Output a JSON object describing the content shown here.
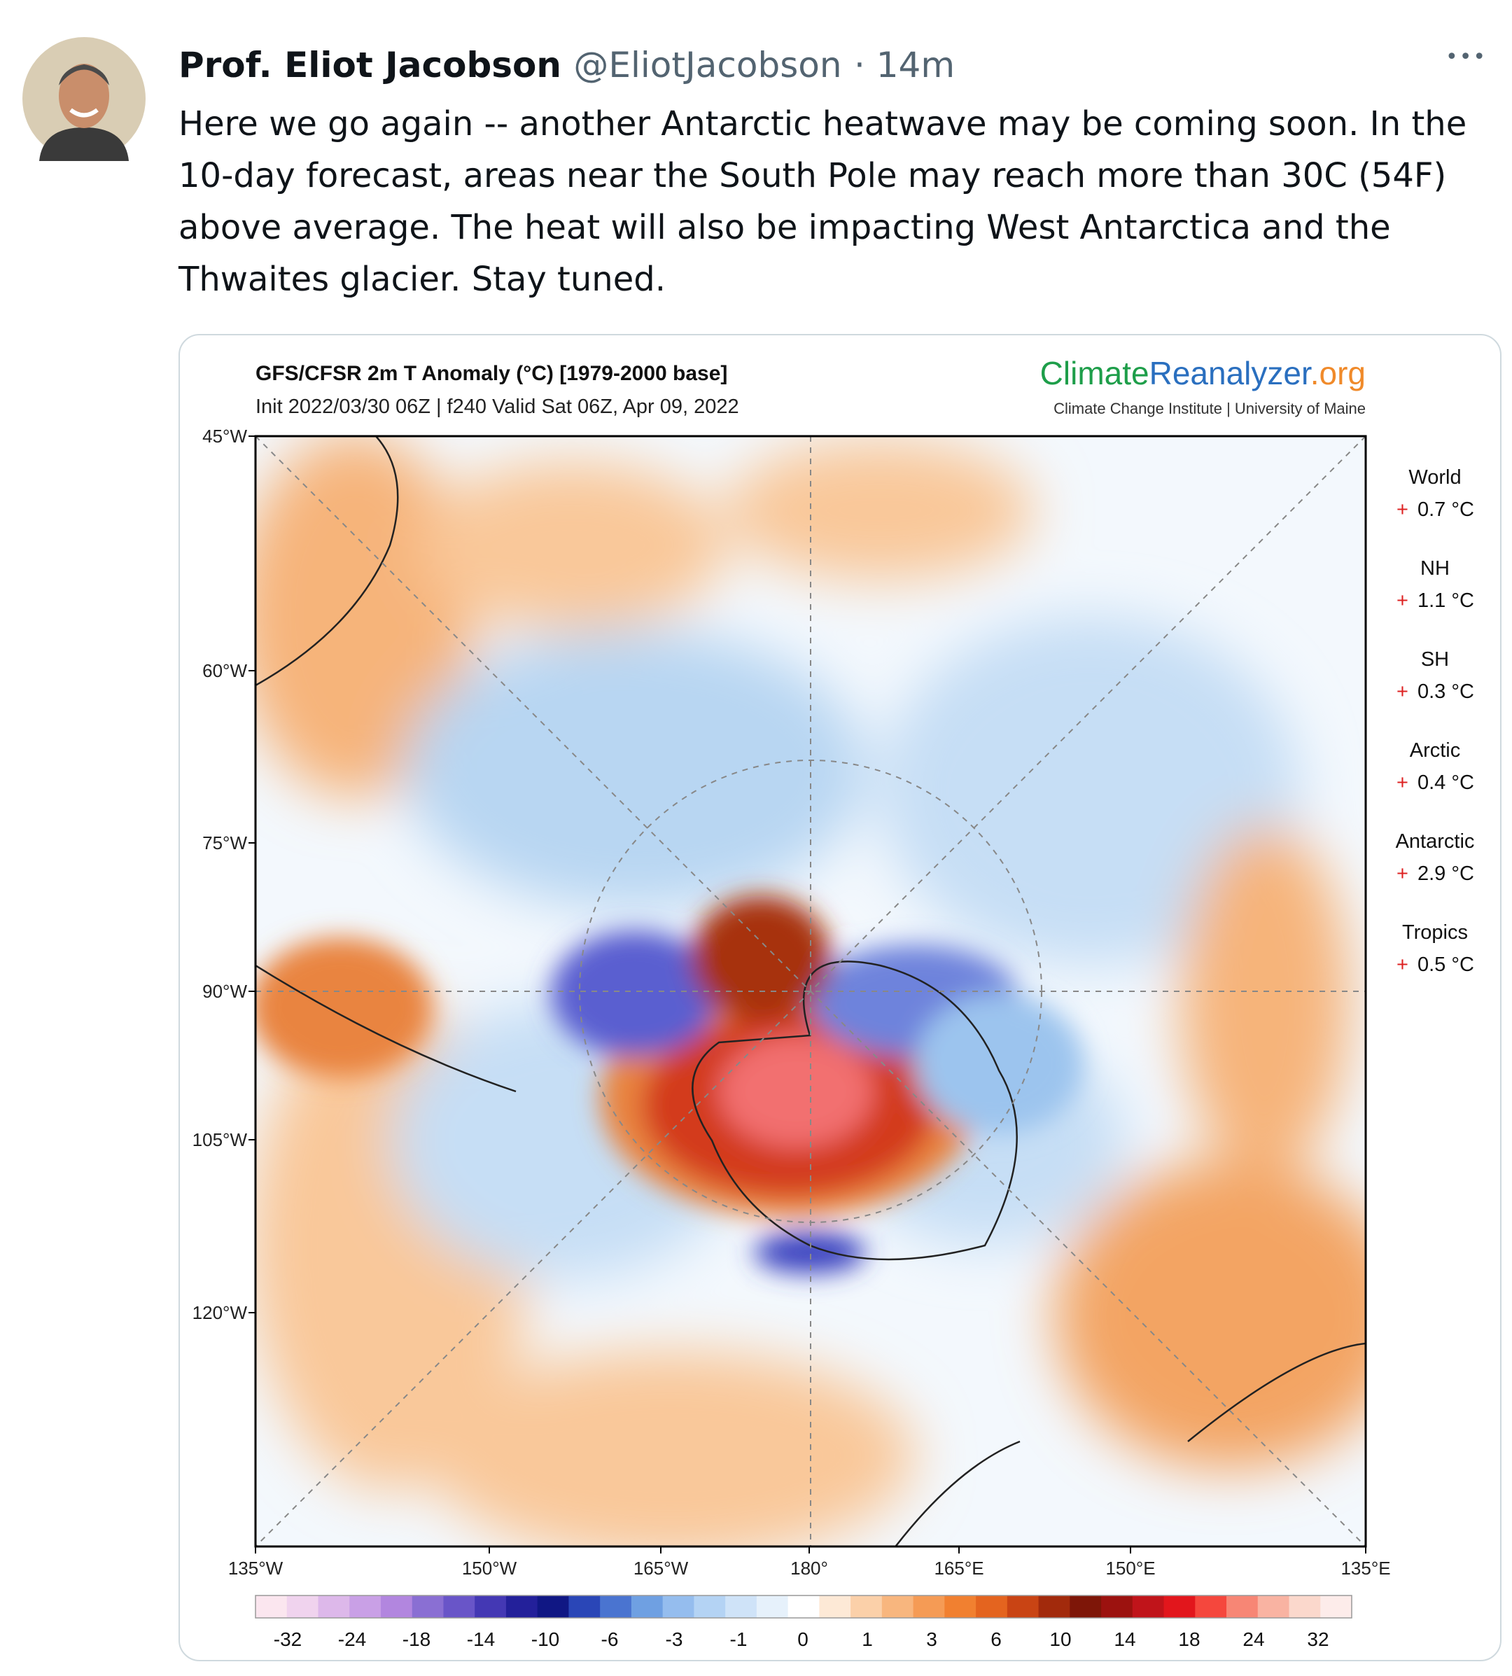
{
  "tweet": {
    "author": "Prof. Eliot Jacobson",
    "handle": "@EliotJacobson",
    "time": "· 14m",
    "more": "•••",
    "text": "Here we go again -- another Antarctic heatwave may be coming soon.  In the 10-day forecast, areas near the South Pole may reach more than 30C (54F) above average. The heat will also be impacting West Antarctica and the Thwaites glacier. Stay tuned."
  },
  "image": {
    "title": "GFS/CFSR 2m T Anomaly (°C) [1979-2000 base]",
    "subtitle": "Init 2022/03/30 06Z | f240 Valid Sat 06Z, Apr 09, 2022",
    "logo": {
      "part1": "Climate",
      "part2": "Reanalyzer",
      "part3": ".org",
      "sub": "Climate Change Institute | University of Maine"
    },
    "left_labels": [
      "45°W",
      "60°W",
      "75°W",
      "90°W",
      "105°W",
      "120°W"
    ],
    "bottom_labels": [
      "135°W",
      "150°W",
      "165°W",
      "180°",
      "165°E",
      "150°E",
      "135°E"
    ],
    "stats": [
      {
        "name": "World",
        "sign": "+",
        "value": "0.7 °C"
      },
      {
        "name": "NH",
        "sign": "+",
        "value": "1.1 °C"
      },
      {
        "name": "SH",
        "sign": "+",
        "value": "0.3 °C"
      },
      {
        "name": "Arctic",
        "sign": "+",
        "value": "0.4 °C"
      },
      {
        "name": "Antarctic",
        "sign": "+",
        "value": "2.9 °C"
      },
      {
        "name": "Tropics",
        "sign": "+",
        "value": "0.5 °C"
      }
    ],
    "colorbar_labels": [
      "-32",
      "-24",
      "-18",
      "-14",
      "-10",
      "-6",
      "-3",
      "-1",
      "0",
      "1",
      "3",
      "6",
      "10",
      "14",
      "18",
      "24",
      "32"
    ]
  }
}
